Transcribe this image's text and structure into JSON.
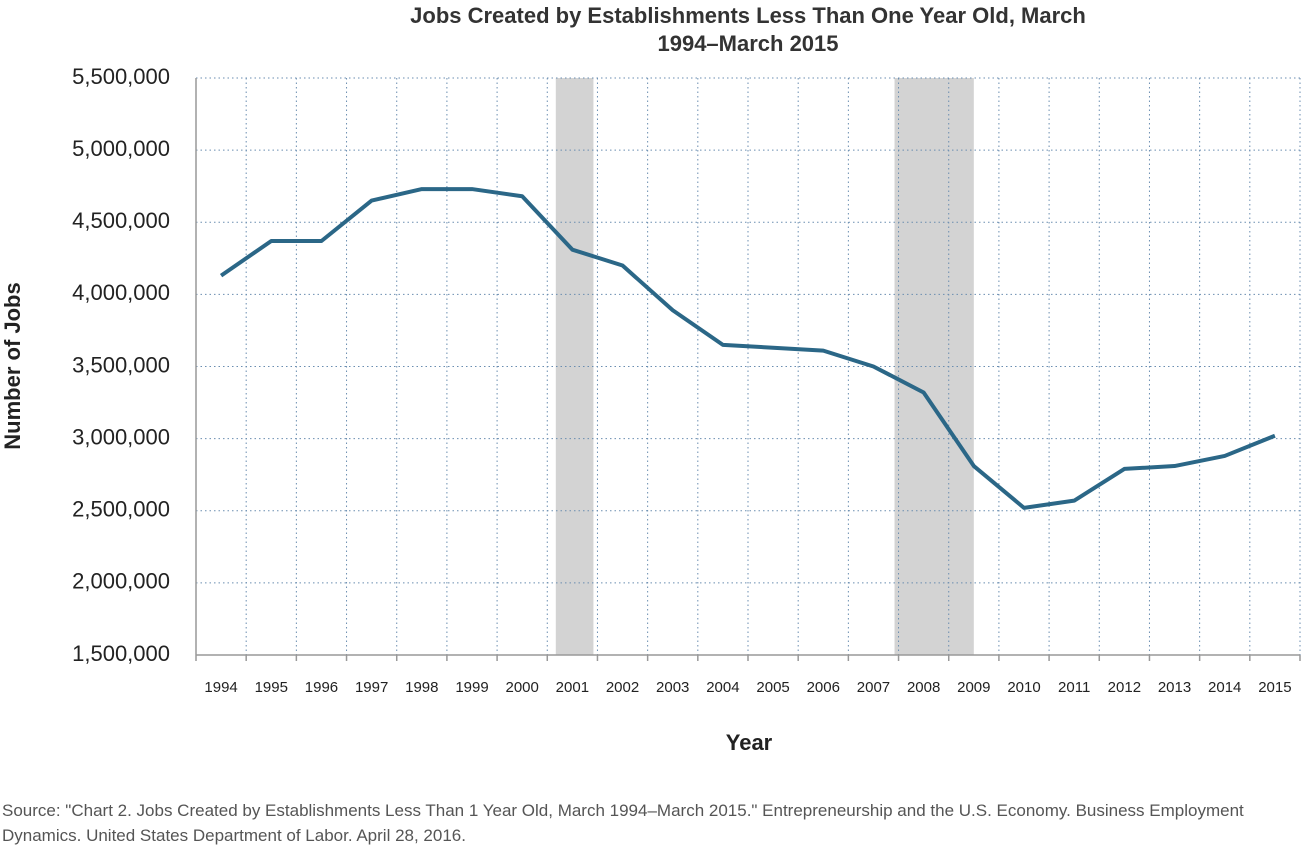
{
  "chart_data": {
    "type": "line",
    "title": "Jobs Created by Establishments Less Than One Year Old, March 1994–March 2015",
    "x_label": "Year",
    "y_label": "Number of Jobs",
    "source": "Source: \"Chart 2. Jobs Created by Establishments Less Than 1 Year Old, March 1994–March 2015.\" Entrepreneurship and the U.S. Economy. Business Employment Dynamics. United States Department of Labor. April 28, 2016.",
    "categories": [
      "1994",
      "1995",
      "1996",
      "1997",
      "1998",
      "1999",
      "2000",
      "2001",
      "2002",
      "2003",
      "2004",
      "2005",
      "2006",
      "2007",
      "2008",
      "2009",
      "2010",
      "2011",
      "2012",
      "2013",
      "2014",
      "2015"
    ],
    "values": [
      4130000,
      4370000,
      4370000,
      4650000,
      4730000,
      4730000,
      4680000,
      4310000,
      4200000,
      3890000,
      3650000,
      3630000,
      3610000,
      3500000,
      3320000,
      2810000,
      2520000,
      2570000,
      2790000,
      2810000,
      2880000,
      3020000
    ],
    "color": "#2b6787",
    "recessions": [
      [
        2001.17,
        2001.92
      ],
      [
        2007.92,
        2009.5
      ]
    ],
    "recession_color": "#d3d3d3",
    "ylim": [
      1500000,
      5500000
    ],
    "yticks": [
      {
        "value": 1500000,
        "label": "1,500,000"
      },
      {
        "value": 2000000,
        "label": "2,000,000"
      },
      {
        "value": 2500000,
        "label": "2,500,000"
      },
      {
        "value": 3000000,
        "label": "3,000,000"
      },
      {
        "value": 3500000,
        "label": "3,500,000"
      },
      {
        "value": 4000000,
        "label": "4,000,000"
      },
      {
        "value": 4500000,
        "label": "4,500,000"
      },
      {
        "value": 5000000,
        "label": "5,000,000"
      },
      {
        "value": 5500000,
        "label": "5,500,000"
      }
    ],
    "grid": true
  }
}
